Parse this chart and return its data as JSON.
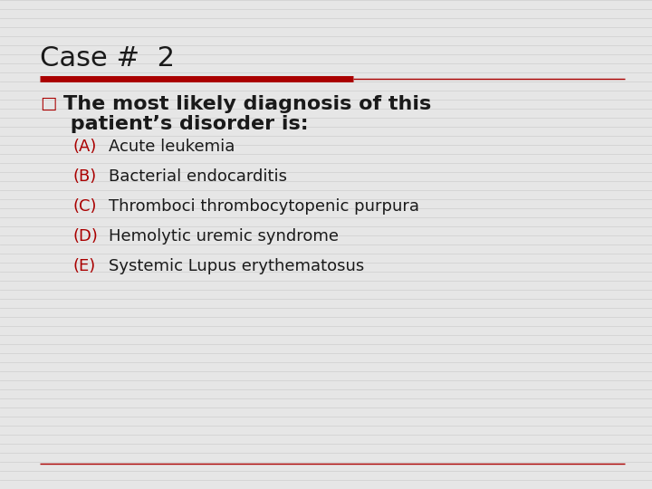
{
  "title": "Case #  2",
  "background_color": "#e6e6e6",
  "title_color": "#1a1a1a",
  "title_fontsize": 22,
  "red_bar_thick_color": "#aa0000",
  "red_bar_thin_color": "#aa0000",
  "bullet_question_line1": "The most likely diagnosis of this",
  "bullet_question_line2": " patient’s disorder is:",
  "question_color": "#1a1a1a",
  "question_fontsize": 16,
  "options": [
    {
      "label": "(A)",
      "text": "Acute leukemia"
    },
    {
      "label": "(B)",
      "text": "Bacterial endocarditis"
    },
    {
      "label": "(C)",
      "text": "Thromboci thrombocytopenic purpura"
    },
    {
      "label": "(D)",
      "text": "Hemolytic uremic syndrome"
    },
    {
      "label": "(E)",
      "text": "Systemic Lupus erythematosus"
    }
  ],
  "option_label_color": "#aa0000",
  "option_text_color": "#1a1a1a",
  "option_fontsize": 13,
  "bullet_symbol": "□",
  "bullet_color": "#aa0000",
  "stripe_color": "#d2d2d2",
  "stripe_linewidth": 0.5,
  "bottom_line_color": "#aa0000"
}
